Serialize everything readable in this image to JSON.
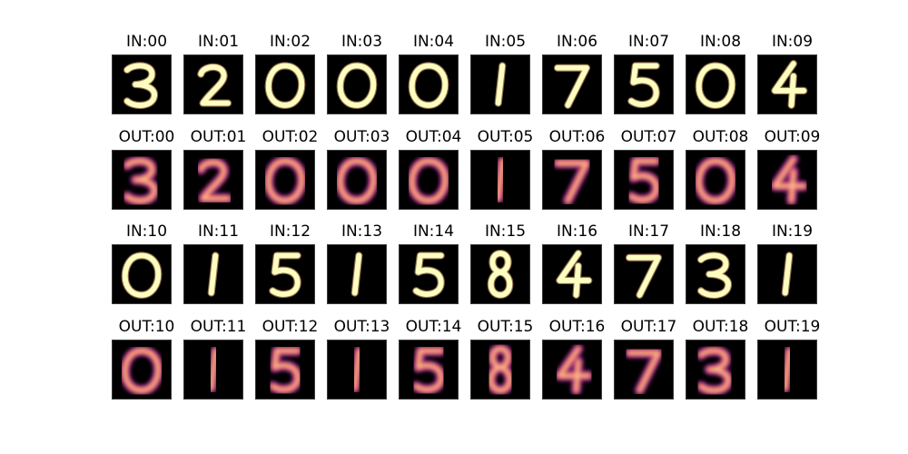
{
  "figure": {
    "panels": [
      {
        "id": "in-00",
        "title": "IN:00",
        "digit": "3",
        "kind": "input",
        "colors": [
          "#fcfdbf",
          "#fec287"
        ]
      },
      {
        "id": "in-01",
        "title": "IN:01",
        "digit": "2",
        "kind": "input",
        "colors": [
          "#fcfdbf",
          "#fec287"
        ]
      },
      {
        "id": "in-02",
        "title": "IN:02",
        "digit": "0",
        "kind": "input",
        "colors": [
          "#fcfdbf",
          "#fec287"
        ]
      },
      {
        "id": "in-03",
        "title": "IN:03",
        "digit": "0",
        "kind": "input",
        "colors": [
          "#fcfdbf",
          "#fec287"
        ]
      },
      {
        "id": "in-04",
        "title": "IN:04",
        "digit": "0",
        "kind": "input",
        "colors": [
          "#fcfdbf",
          "#fec287"
        ]
      },
      {
        "id": "in-05",
        "title": "IN:05",
        "digit": "1",
        "kind": "input",
        "colors": [
          "#fcfdbf",
          "#fec287"
        ]
      },
      {
        "id": "in-06",
        "title": "IN:06",
        "digit": "7",
        "kind": "input",
        "colors": [
          "#fcfdbf",
          "#fec287"
        ]
      },
      {
        "id": "in-07",
        "title": "IN:07",
        "digit": "5",
        "kind": "input",
        "colors": [
          "#fcfdbf",
          "#fec287"
        ]
      },
      {
        "id": "in-08",
        "title": "IN:08",
        "digit": "0",
        "kind": "input",
        "colors": [
          "#fcfdbf",
          "#fec287"
        ]
      },
      {
        "id": "in-09",
        "title": "IN:09",
        "digit": "4",
        "kind": "input",
        "colors": [
          "#fcfdbf",
          "#fec287"
        ]
      },
      {
        "id": "out-00",
        "title": "OUT:00",
        "digit": "3",
        "kind": "output",
        "colors": [
          "#fde0a0",
          "#e85c5c",
          "#7b2382"
        ]
      },
      {
        "id": "out-01",
        "title": "OUT:01",
        "digit": "2",
        "kind": "output",
        "colors": [
          "#fde0a0",
          "#e85c5c",
          "#7b2382"
        ]
      },
      {
        "id": "out-02",
        "title": "OUT:02",
        "digit": "0",
        "kind": "output",
        "colors": [
          "#fde0a0",
          "#e85c5c",
          "#7b2382"
        ]
      },
      {
        "id": "out-03",
        "title": "OUT:03",
        "digit": "0",
        "kind": "output",
        "colors": [
          "#fde0a0",
          "#e85c5c",
          "#7b2382"
        ]
      },
      {
        "id": "out-04",
        "title": "OUT:04",
        "digit": "0",
        "kind": "output",
        "colors": [
          "#fde0a0",
          "#e85c5c",
          "#7b2382"
        ]
      },
      {
        "id": "out-05",
        "title": "OUT:05",
        "digit": "1",
        "kind": "output",
        "colors": [
          "#fde0a0",
          "#e85c5c",
          "#7b2382"
        ]
      },
      {
        "id": "out-06",
        "title": "OUT:06",
        "digit": "7",
        "kind": "output",
        "colors": [
          "#fde0a0",
          "#e85c5c",
          "#7b2382"
        ]
      },
      {
        "id": "out-07",
        "title": "OUT:07",
        "digit": "5",
        "kind": "output",
        "colors": [
          "#fde0a0",
          "#e85c5c",
          "#7b2382"
        ]
      },
      {
        "id": "out-08",
        "title": "OUT:08",
        "digit": "0",
        "kind": "output",
        "colors": [
          "#fde0a0",
          "#e85c5c",
          "#7b2382"
        ]
      },
      {
        "id": "out-09",
        "title": "OUT:09",
        "digit": "4",
        "kind": "output",
        "colors": [
          "#fde0a0",
          "#e85c5c",
          "#7b2382"
        ]
      },
      {
        "id": "in-10",
        "title": "IN:10",
        "digit": "0",
        "kind": "input",
        "colors": [
          "#fcfdbf",
          "#fec287"
        ]
      },
      {
        "id": "in-11",
        "title": "IN:11",
        "digit": "1",
        "kind": "input",
        "colors": [
          "#fcfdbf",
          "#fec287"
        ]
      },
      {
        "id": "in-12",
        "title": "IN:12",
        "digit": "5",
        "kind": "input",
        "colors": [
          "#fcfdbf",
          "#fec287"
        ]
      },
      {
        "id": "in-13",
        "title": "IN:13",
        "digit": "1",
        "kind": "input",
        "colors": [
          "#fcfdbf",
          "#fec287"
        ]
      },
      {
        "id": "in-14",
        "title": "IN:14",
        "digit": "5",
        "kind": "input",
        "colors": [
          "#fcfdbf",
          "#fec287"
        ]
      },
      {
        "id": "in-15",
        "title": "IN:15",
        "digit": "8",
        "kind": "input",
        "colors": [
          "#fcfdbf",
          "#fec287"
        ]
      },
      {
        "id": "in-16",
        "title": "IN:16",
        "digit": "4",
        "kind": "input",
        "colors": [
          "#fcfdbf",
          "#fec287"
        ]
      },
      {
        "id": "in-17",
        "title": "IN:17",
        "digit": "7",
        "kind": "input",
        "colors": [
          "#fcfdbf",
          "#fec287"
        ]
      },
      {
        "id": "in-18",
        "title": "IN:18",
        "digit": "3",
        "kind": "input",
        "colors": [
          "#fcfdbf",
          "#fec287"
        ]
      },
      {
        "id": "in-19",
        "title": "IN:19",
        "digit": "1",
        "kind": "input",
        "colors": [
          "#fcfdbf",
          "#fec287"
        ]
      },
      {
        "id": "out-10",
        "title": "OUT:10",
        "digit": "0",
        "kind": "output",
        "colors": [
          "#fde0a0",
          "#e85c5c",
          "#7b2382"
        ]
      },
      {
        "id": "out-11",
        "title": "OUT:11",
        "digit": "1",
        "kind": "output",
        "colors": [
          "#fde0a0",
          "#e85c5c",
          "#7b2382"
        ]
      },
      {
        "id": "out-12",
        "title": "OUT:12",
        "digit": "5",
        "kind": "output",
        "colors": [
          "#fde0a0",
          "#e85c5c",
          "#7b2382"
        ]
      },
      {
        "id": "out-13",
        "title": "OUT:13",
        "digit": "1",
        "kind": "output",
        "colors": [
          "#fde0a0",
          "#e85c5c",
          "#7b2382"
        ]
      },
      {
        "id": "out-14",
        "title": "OUT:14",
        "digit": "5",
        "kind": "output",
        "colors": [
          "#fde0a0",
          "#e85c5c",
          "#7b2382"
        ]
      },
      {
        "id": "out-15",
        "title": "OUT:15",
        "digit": "8",
        "kind": "output",
        "colors": [
          "#fde0a0",
          "#e85c5c",
          "#7b2382"
        ]
      },
      {
        "id": "out-16",
        "title": "OUT:16",
        "digit": "4",
        "kind": "output",
        "colors": [
          "#fde0a0",
          "#e85c5c",
          "#7b2382"
        ]
      },
      {
        "id": "out-17",
        "title": "OUT:17",
        "digit": "7",
        "kind": "output",
        "colors": [
          "#fde0a0",
          "#e85c5c",
          "#7b2382"
        ]
      },
      {
        "id": "out-18",
        "title": "OUT:18",
        "digit": "3",
        "kind": "output",
        "colors": [
          "#fde0a0",
          "#e85c5c",
          "#7b2382"
        ]
      },
      {
        "id": "out-19",
        "title": "OUT:19",
        "digit": "1",
        "kind": "output",
        "colors": [
          "#fde0a0",
          "#e85c5c",
          "#7b2382"
        ]
      }
    ]
  }
}
